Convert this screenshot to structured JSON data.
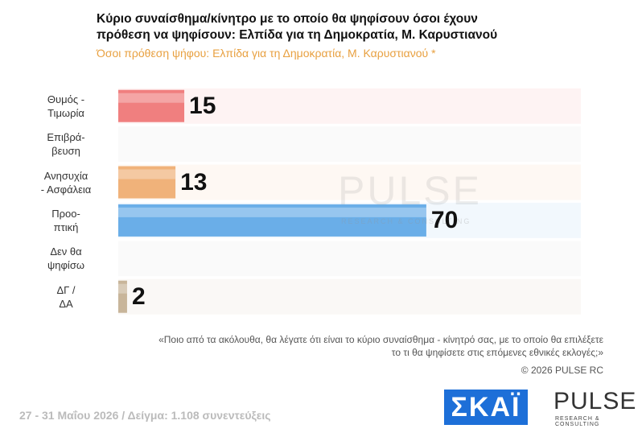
{
  "chart_data": {
    "type": "bar",
    "title": "Κύριο συναίσθημα/κίνητρο με το οποίο θα ψηφίσουν όσοι έχουν\nπρόθεση να ψηφίσουν: Ελπίδα για τη Δημοκρατία, Μ. Καρυστιανού",
    "subtitle": "Όσοι πρόθεση ψήφου: Ελπίδα για τη Δημοκρατία, Μ. Καρυστιανού *",
    "categories": [
      "Θυμός -\nΤιμωρία",
      "Επιβρά-\nβευση",
      "Ανησυχία\n- Ασφάλεια",
      "Προο-\nπτική",
      "Δεν θα\nψηφίσω",
      "ΔΓ /\nΔΑ"
    ],
    "values": [
      15,
      null,
      13,
      70,
      null,
      2
    ],
    "colors": [
      "#f07f7f",
      "#cccccc",
      "#f0b27a",
      "#6aaee8",
      "#cccccc",
      "#c8b59a"
    ],
    "note": "«Ποιο από τα ακόλουθα, θα λέγατε ότι είναι το κύριο συναίσθημα - κίνητρό σας, με το οποίο θα επιλέξετε\nτο τι θα ψηφίσετε στις επόμενες εθνικές εκλογές;»",
    "copyright": "©  2026  PULSE RC",
    "footer": "27 - 31  Μαΐου 2026  /  Δείγμα:  1.108 συνεντεύξεις",
    "watermark": "PULSE",
    "watermark_sub": "RESEARCH & CONSULTING",
    "logo_skai": "ΣΚΑΪ",
    "logo_pulse": "PULSE",
    "logo_pulse_sub": "RESEARCH & CONSULTING"
  }
}
